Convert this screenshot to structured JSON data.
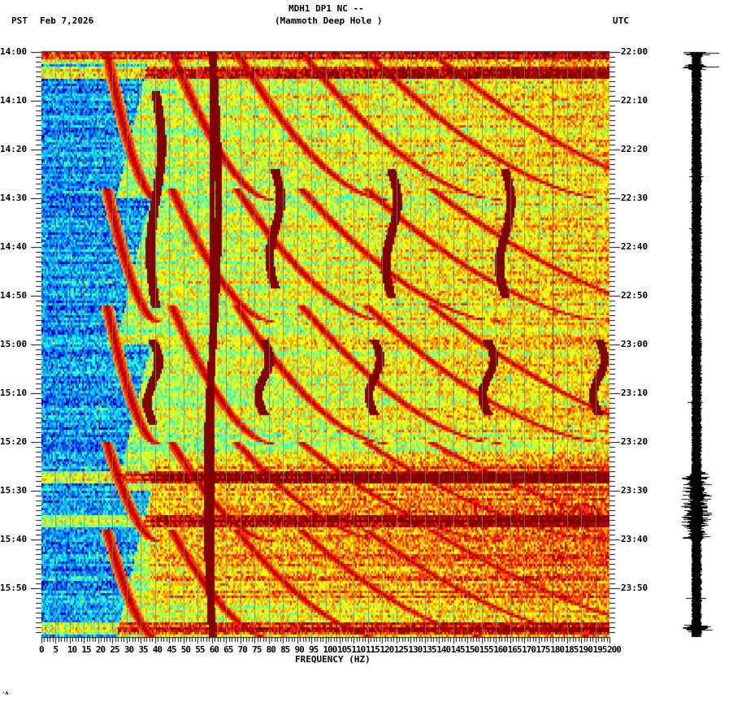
{
  "header": {
    "station_line": "MDH1 DP1 NC --",
    "station_name": "(Mammoth Deep Hole )",
    "left_tz": "PST",
    "date": "Feb 7,2026",
    "right_tz": "UTC"
  },
  "footer_mark": "·ʌ",
  "chart_data": {
    "type": "heatmap",
    "title": "MDH1 DP1 NC -- (Mammoth Deep Hole ) spectrogram",
    "xlabel": "FREQUENCY (HZ)",
    "ylabel_left": "PST",
    "ylabel_right": "UTC",
    "xlim": [
      0,
      200
    ],
    "x_ticks": [
      0,
      5,
      10,
      15,
      20,
      25,
      30,
      35,
      40,
      45,
      50,
      55,
      60,
      65,
      70,
      75,
      80,
      85,
      90,
      95,
      100,
      105,
      110,
      115,
      120,
      125,
      130,
      135,
      140,
      145,
      150,
      155,
      160,
      165,
      170,
      175,
      180,
      185,
      190,
      195,
      200
    ],
    "x_tick_labels": [
      "0",
      "5",
      "10",
      "15",
      "20",
      "25",
      "30",
      "35",
      "40",
      "45",
      "50",
      "55",
      "60",
      "65",
      "70",
      "75",
      "80",
      "85",
      "90",
      "95",
      "100",
      "105",
      "110",
      "115",
      "120",
      "125",
      "130",
      "135",
      "140",
      "145",
      "150",
      "155",
      "160",
      "165",
      "170",
      "175",
      "180",
      "185",
      "190",
      "195",
      "200"
    ],
    "y_ticks_left": [
      "14:00",
      "14:10",
      "14:20",
      "14:30",
      "14:40",
      "14:50",
      "15:00",
      "15:10",
      "15:20",
      "15:30",
      "15:40",
      "15:50"
    ],
    "y_ticks_right": [
      "22:00",
      "22:10",
      "22:20",
      "22:30",
      "22:40",
      "22:50",
      "23:00",
      "23:10",
      "23:20",
      "23:30",
      "23:40",
      "23:50"
    ],
    "time_range_minutes": [
      0,
      120
    ],
    "minor_tick_minutes": 1,
    "minor_tick_hz": 1,
    "grid_hz": 5,
    "colormap": [
      "#0000bf",
      "#0060ff",
      "#00c0ff",
      "#30ffd0",
      "#a0ff60",
      "#ffff00",
      "#ffa000",
      "#ff3000",
      "#c00000",
      "#800000"
    ],
    "persistent_lines_hz": [
      60,
      180
    ],
    "features": [
      {
        "name": "60 Hz power line",
        "freq_hz": 60,
        "t_start": 0,
        "t_end": 120,
        "intensity": 1.0
      },
      {
        "name": "vertical band ~40 Hz",
        "freq_hz": 40,
        "t_start": 8,
        "t_end": 52,
        "intensity": 0.95
      },
      {
        "name": "vertical band ~82 Hz",
        "freq_hz": 82,
        "t_start": 24,
        "t_end": 48,
        "intensity": 0.95
      },
      {
        "name": "vertical band ~123 Hz",
        "freq_hz": 123,
        "t_start": 24,
        "t_end": 50,
        "intensity": 0.95
      },
      {
        "name": "vertical band ~163 Hz",
        "freq_hz": 163,
        "t_start": 24,
        "t_end": 50,
        "intensity": 0.95
      },
      {
        "name": "vertical band ~39 Hz",
        "freq_hz": 39,
        "t_start": 59,
        "t_end": 76,
        "intensity": 0.95
      },
      {
        "name": "vertical band ~78 Hz",
        "freq_hz": 78,
        "t_start": 59,
        "t_end": 74,
        "intensity": 0.95
      },
      {
        "name": "vertical band ~117 Hz",
        "freq_hz": 117,
        "t_start": 59,
        "t_end": 74,
        "intensity": 0.95
      },
      {
        "name": "vertical band ~157 Hz",
        "freq_hz": 157,
        "t_start": 59,
        "t_end": 74,
        "intensity": 0.95
      },
      {
        "name": "vertical band ~196 Hz",
        "freq_hz": 196,
        "t_start": 59,
        "t_end": 74,
        "intensity": 0.9
      }
    ],
    "low_energy_region": {
      "freq_range_hz": [
        0,
        38
      ],
      "t_range": [
        2,
        120
      ],
      "level": 0.2
    },
    "broadband_events_minutes": [
      0,
      4,
      87,
      96,
      118
    ],
    "seismogram_burst_minutes": [
      0,
      3,
      87,
      96,
      118
    ]
  }
}
